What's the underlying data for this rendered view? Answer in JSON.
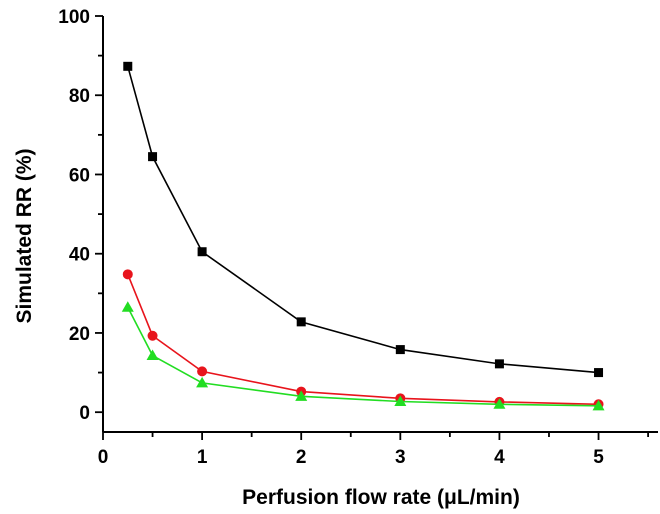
{
  "chart_data": {
    "type": "line",
    "xlabel": "Perfusion flow rate (μL/min)",
    "ylabel": "Simulated RR (%)",
    "xlim": [
      0,
      5.6
    ],
    "ylim": [
      -5,
      100
    ],
    "xticks": [
      0,
      1,
      2,
      3,
      4,
      5
    ],
    "yticks": [
      0,
      20,
      40,
      60,
      80,
      100
    ],
    "x_tick_labels": [
      "0",
      "1",
      "2",
      "3",
      "4",
      "5"
    ],
    "y_tick_labels": [
      "0",
      "20",
      "40",
      "60",
      "80",
      "100"
    ],
    "grid": false,
    "x": [
      0.25,
      0.5,
      1,
      2,
      3,
      4,
      5
    ],
    "series": [
      {
        "color": "#000000",
        "marker": "square",
        "values": [
          87.3,
          64.5,
          40.5,
          22.8,
          15.8,
          12.2,
          10.0
        ]
      },
      {
        "color": "#e8141c",
        "marker": "circle",
        "values": [
          34.8,
          19.3,
          10.3,
          5.2,
          3.5,
          2.6,
          2.0
        ]
      },
      {
        "color": "#22dd22",
        "marker": "triangle",
        "values": [
          26.5,
          14.3,
          7.4,
          4.0,
          2.7,
          2.0,
          1.6
        ]
      }
    ]
  }
}
